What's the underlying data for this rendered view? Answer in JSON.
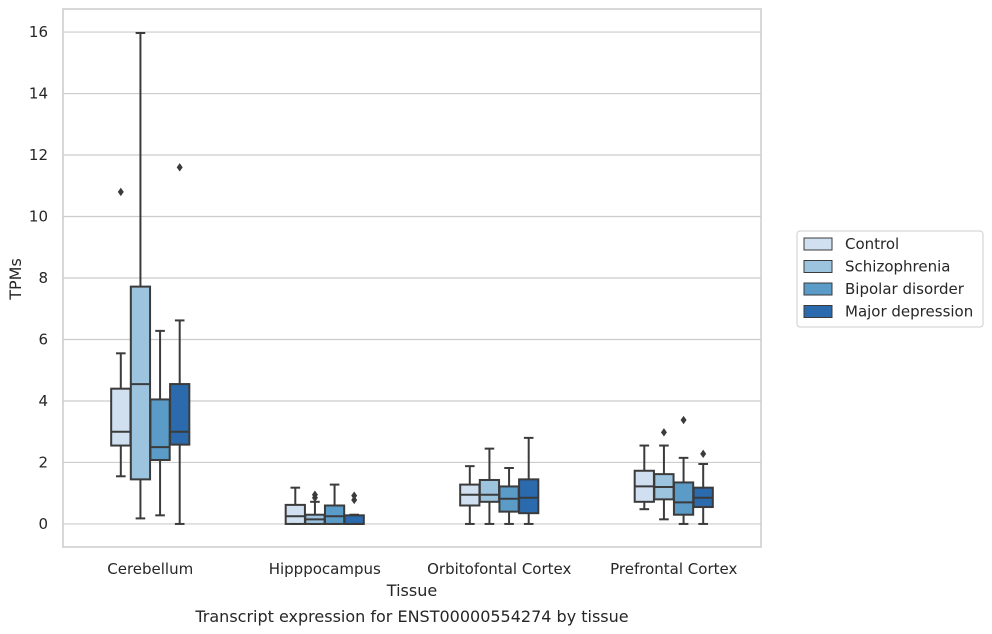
{
  "chart_data": {
    "type": "box",
    "title": "",
    "caption": "Transcript expression for ENST00000554274 by tissue",
    "xlabel": "Tissue",
    "ylabel": "TPMs",
    "ylim": [
      -0.75,
      16.75
    ],
    "yticks": [
      0,
      2,
      4,
      6,
      8,
      10,
      12,
      14,
      16
    ],
    "grid": "horizontal",
    "legend_position": "right",
    "categories": [
      "Cerebellum",
      "Hipppocampus",
      "Orbitofontal Cortex",
      "Prefrontal Cortex"
    ],
    "series": [
      {
        "name": "Control",
        "color": "#d0e0f0",
        "boxes": [
          {
            "whislo": 1.55,
            "q1": 2.55,
            "med": 3.0,
            "q3": 4.4,
            "whishi": 5.55,
            "fliers": [
              10.8
            ]
          },
          {
            "whislo": 0.0,
            "q1": 0.0,
            "med": 0.25,
            "q3": 0.62,
            "whishi": 1.18,
            "fliers": []
          },
          {
            "whislo": 0.0,
            "q1": 0.6,
            "med": 0.95,
            "q3": 1.28,
            "whishi": 1.88,
            "fliers": []
          },
          {
            "whislo": 0.48,
            "q1": 0.72,
            "med": 1.22,
            "q3": 1.73,
            "whishi": 2.55,
            "fliers": []
          }
        ]
      },
      {
        "name": "Schizophrenia",
        "color": "#9dc4df",
        "boxes": [
          {
            "whislo": 0.18,
            "q1": 1.45,
            "med": 4.55,
            "q3": 7.72,
            "whishi": 15.97,
            "fliers": []
          },
          {
            "whislo": 0.0,
            "q1": 0.0,
            "med": 0.15,
            "q3": 0.3,
            "whishi": 0.72,
            "fliers": [
              0.85,
              0.95
            ]
          },
          {
            "whislo": 0.0,
            "q1": 0.72,
            "med": 0.95,
            "q3": 1.43,
            "whishi": 2.45,
            "fliers": []
          },
          {
            "whislo": 0.15,
            "q1": 0.8,
            "med": 1.2,
            "q3": 1.62,
            "whishi": 2.55,
            "fliers": [
              2.98
            ]
          }
        ]
      },
      {
        "name": "Bipolar disorder",
        "color": "#5b9bc8",
        "boxes": [
          {
            "whislo": 0.28,
            "q1": 2.08,
            "med": 2.5,
            "q3": 4.05,
            "whishi": 6.28,
            "fliers": []
          },
          {
            "whislo": 0.0,
            "q1": 0.0,
            "med": 0.25,
            "q3": 0.6,
            "whishi": 1.28,
            "fliers": []
          },
          {
            "whislo": 0.0,
            "q1": 0.4,
            "med": 0.82,
            "q3": 1.22,
            "whishi": 1.82,
            "fliers": []
          },
          {
            "whislo": 0.0,
            "q1": 0.3,
            "med": 0.7,
            "q3": 1.35,
            "whishi": 2.15,
            "fliers": [
              3.38
            ]
          }
        ]
      },
      {
        "name": "Major depression",
        "color": "#2a6aad",
        "boxes": [
          {
            "whislo": 0.0,
            "q1": 2.58,
            "med": 3.0,
            "q3": 4.55,
            "whishi": 6.62,
            "fliers": [
              11.6
            ]
          },
          {
            "whislo": 0.0,
            "q1": 0.0,
            "med": 0.0,
            "q3": 0.28,
            "whishi": 0.3,
            "fliers": [
              0.78,
              0.92
            ]
          },
          {
            "whislo": 0.0,
            "q1": 0.35,
            "med": 0.85,
            "q3": 1.45,
            "whishi": 2.8,
            "fliers": []
          },
          {
            "whislo": 0.0,
            "q1": 0.55,
            "med": 0.85,
            "q3": 1.18,
            "whishi": 1.95,
            "fliers": [
              2.28
            ]
          }
        ]
      }
    ]
  }
}
